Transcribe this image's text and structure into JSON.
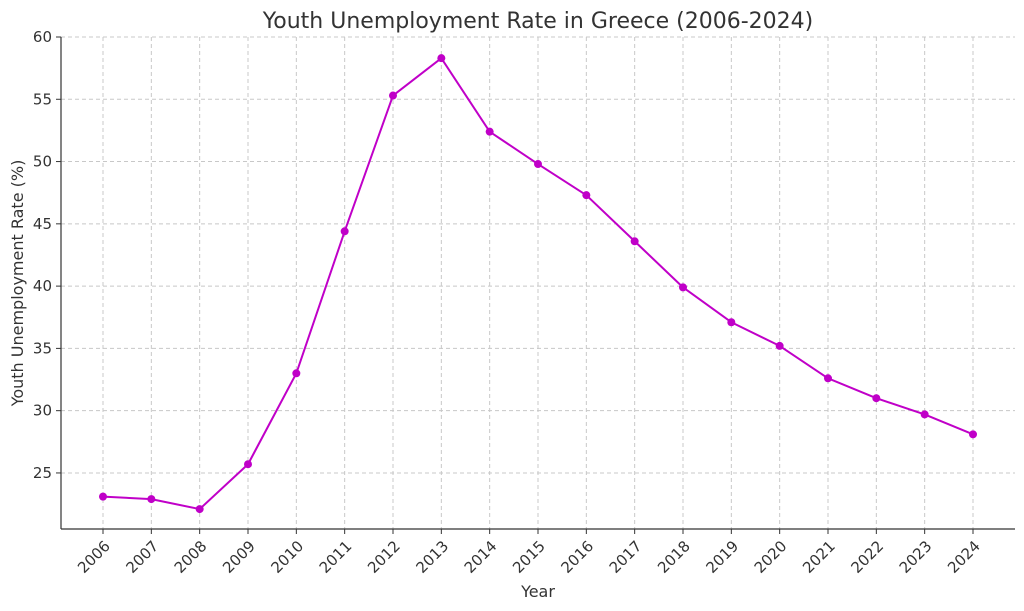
{
  "chart_data": {
    "type": "line",
    "title": "Youth Unemployment Rate in Greece (2006-2024)",
    "xlabel": "Year",
    "ylabel": "Youth Unemployment Rate (%)",
    "categories": [
      "2006",
      "2007",
      "2008",
      "2009",
      "2010",
      "2011",
      "2012",
      "2013",
      "2014",
      "2015",
      "2016",
      "2017",
      "2018",
      "2019",
      "2020",
      "2021",
      "2022",
      "2023",
      "2024"
    ],
    "series": [
      {
        "values": [
          23.1,
          22.9,
          22.1,
          25.7,
          33.0,
          44.4,
          55.3,
          58.3,
          52.4,
          49.8,
          47.3,
          43.6,
          39.9,
          37.1,
          35.2,
          32.6,
          31.0,
          29.7,
          28.1
        ]
      }
    ],
    "ylim": [
      20.5,
      60
    ],
    "yticks": [
      25,
      30,
      35,
      40,
      45,
      50,
      55,
      60
    ],
    "grid": true,
    "line_color": "#c000c8"
  }
}
